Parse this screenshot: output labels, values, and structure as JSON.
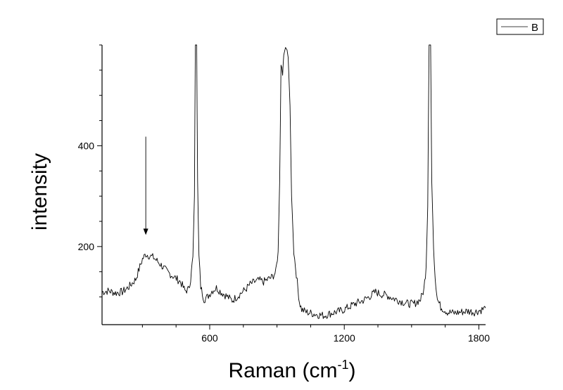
{
  "chart_data": {
    "type": "line",
    "xlabel": "Raman (cm",
    "xlabel_sup": "-1",
    "xlabel_close": ")",
    "ylabel": "intensity",
    "xlim": [
      120,
      1830
    ],
    "ylim": [
      45,
      600
    ],
    "x_ticks": [
      600,
      1200,
      1800
    ],
    "y_ticks": [
      200,
      400
    ],
    "legend": {
      "position": "top-right",
      "entries": [
        "B"
      ]
    },
    "line_color": "#000000",
    "annotation": {
      "type": "arrow",
      "x": 315,
      "y_from": 418,
      "y_to": 223
    },
    "series": [
      {
        "name": "B",
        "points": [
          [
            120,
            110
          ],
          [
            150,
            112
          ],
          [
            180,
            108
          ],
          [
            210,
            110
          ],
          [
            240,
            120
          ],
          [
            270,
            135
          ],
          [
            300,
            175
          ],
          [
            315,
            185
          ],
          [
            330,
            182
          ],
          [
            350,
            178
          ],
          [
            380,
            165
          ],
          [
            410,
            150
          ],
          [
            440,
            140
          ],
          [
            470,
            130
          ],
          [
            490,
            112
          ],
          [
            505,
            115
          ],
          [
            515,
            135
          ],
          [
            525,
            180
          ],
          [
            532,
            300
          ],
          [
            536,
            600
          ],
          [
            542,
            600
          ],
          [
            546,
            330
          ],
          [
            552,
            180
          ],
          [
            560,
            120
          ],
          [
            575,
            95
          ],
          [
            590,
            100
          ],
          [
            610,
            112
          ],
          [
            630,
            118
          ],
          [
            650,
            110
          ],
          [
            680,
            100
          ],
          [
            700,
            93
          ],
          [
            720,
            100
          ],
          [
            740,
            108
          ],
          [
            760,
            115
          ],
          [
            780,
            125
          ],
          [
            800,
            130
          ],
          [
            820,
            133
          ],
          [
            840,
            130
          ],
          [
            860,
            135
          ],
          [
            880,
            140
          ],
          [
            895,
            150
          ],
          [
            905,
            190
          ],
          [
            912,
            330
          ],
          [
            918,
            560
          ],
          [
            925,
            545
          ],
          [
            930,
            580
          ],
          [
            938,
            595
          ],
          [
            945,
            590
          ],
          [
            950,
            575
          ],
          [
            958,
            480
          ],
          [
            965,
            300
          ],
          [
            975,
            190
          ],
          [
            990,
            130
          ],
          [
            1000,
            90
          ],
          [
            1010,
            75
          ],
          [
            1030,
            70
          ],
          [
            1050,
            68
          ],
          [
            1080,
            65
          ],
          [
            1110,
            63
          ],
          [
            1130,
            66
          ],
          [
            1160,
            70
          ],
          [
            1190,
            73
          ],
          [
            1220,
            80
          ],
          [
            1250,
            87
          ],
          [
            1280,
            92
          ],
          [
            1310,
            100
          ],
          [
            1340,
            110
          ],
          [
            1360,
            106
          ],
          [
            1390,
            103
          ],
          [
            1420,
            97
          ],
          [
            1450,
            92
          ],
          [
            1480,
            87
          ],
          [
            1510,
            86
          ],
          [
            1540,
            95
          ],
          [
            1555,
            115
          ],
          [
            1565,
            160
          ],
          [
            1572,
            280
          ],
          [
            1578,
            600
          ],
          [
            1585,
            600
          ],
          [
            1590,
            330
          ],
          [
            1598,
            200
          ],
          [
            1605,
            140
          ],
          [
            1615,
            95
          ],
          [
            1630,
            80
          ],
          [
            1660,
            70
          ],
          [
            1690,
            68
          ],
          [
            1720,
            70
          ],
          [
            1750,
            72
          ],
          [
            1780,
            70
          ],
          [
            1810,
            74
          ],
          [
            1830,
            78
          ]
        ]
      }
    ]
  }
}
